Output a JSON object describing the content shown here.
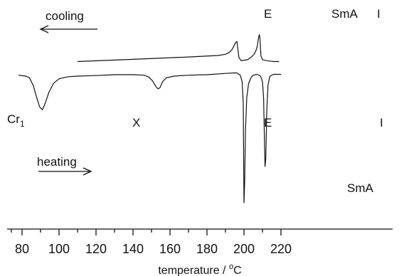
{
  "chart_data": {
    "type": "line",
    "title": "",
    "xlabel_main": "temperature / ",
    "xlabel_sup": "o",
    "xlabel_unit": "C",
    "ylabel": "",
    "xlim": [
      78,
      220
    ],
    "ylim": [
      -100,
      35
    ],
    "grid": false,
    "xticks": [
      80,
      100,
      120,
      140,
      160,
      180,
      200,
      220
    ],
    "series": [
      {
        "label": "cooling",
        "x": [
          110,
          140,
          170,
          186,
          190,
          192,
          193.5,
          194.5,
          195.5,
          196.2,
          196.7,
          197.3,
          198.5,
          202,
          204,
          205.5,
          206.5,
          207.3,
          207.9,
          208.3,
          208.7,
          209.2,
          210,
          212,
          216,
          219
        ],
        "y": [
          1,
          2.2,
          3.5,
          4.3,
          5,
          6,
          7.5,
          9.5,
          11.5,
          12,
          8,
          3,
          1.5,
          2,
          3.5,
          5,
          7,
          10,
          14,
          16,
          13,
          4,
          2,
          1.5,
          1,
          1
        ]
      },
      {
        "label": "heating",
        "x": [
          78,
          82,
          84,
          86,
          88,
          89.5,
          91,
          92.5,
          94.5,
          97,
          100,
          105,
          110,
          120,
          130,
          140,
          146,
          148.5,
          150.5,
          152.5,
          153.5,
          154.5,
          156,
          158,
          162,
          170,
          180,
          190,
          196,
          198,
          199,
          199.6,
          200,
          200.4,
          200.8,
          201.5,
          202.5,
          204,
          205,
          207,
          209,
          210,
          210.6,
          211,
          211.4,
          211.8,
          212.3,
          213,
          214,
          216,
          220
        ],
        "y": [
          0.5,
          0,
          -1,
          -5,
          -12,
          -17,
          -18.5,
          -15,
          -9,
          -4,
          -1.5,
          -0.3,
          0,
          0.3,
          0.8,
          0.8,
          0.5,
          -0.5,
          -2.5,
          -6,
          -7,
          -6.5,
          -3,
          -1,
          0,
          0.5,
          0.8,
          1.5,
          1.8,
          0.5,
          -3,
          -15,
          -70,
          -58,
          -30,
          -12,
          -4,
          -0.5,
          0.5,
          1,
          0,
          -3,
          -12,
          -32,
          -50,
          -45,
          -20,
          -5,
          0,
          1,
          1
        ]
      }
    ]
  },
  "annotations": {
    "cooling": "cooling",
    "heating": "heating",
    "cr_main": "Cr",
    "cr_sub": "1",
    "x": "X",
    "e_top": "E",
    "e_bottom": "E",
    "sma_top": "SmA",
    "sma_bottom": "SmA",
    "i_top": "I",
    "i_bottom": "I"
  },
  "colors": {
    "ink": "#111111",
    "background": "#ffffff"
  }
}
